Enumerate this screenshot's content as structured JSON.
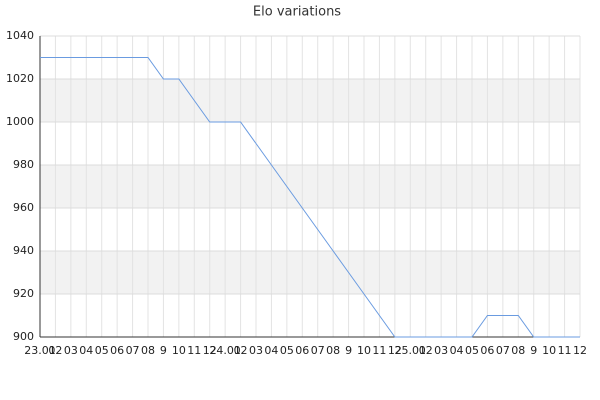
{
  "chart_data": {
    "type": "line",
    "title": "Elo variations",
    "categories": [
      "23.01",
      "02",
      "03",
      "04",
      "05",
      "06",
      "07",
      "08",
      "9",
      "10",
      "11",
      "12",
      "24.01",
      "02",
      "03",
      "04",
      "05",
      "06",
      "07",
      "08",
      "9",
      "10",
      "11",
      "12",
      "25.01",
      "02",
      "03",
      "04",
      "05",
      "06",
      "07",
      "08",
      "9",
      "10",
      "11",
      "12"
    ],
    "series": [
      {
        "name": "Elo",
        "color": "#6a9be0",
        "values": [
          1030,
          1030,
          1030,
          1030,
          1030,
          1030,
          1030,
          1030,
          1020,
          1020,
          1010,
          1000,
          1000,
          1000,
          990,
          980,
          970,
          960,
          950,
          940,
          930,
          920,
          910,
          900,
          900,
          900,
          900,
          900,
          900,
          910,
          910,
          910,
          900,
          900,
          900,
          900
        ]
      }
    ],
    "ylim": [
      900,
      1040
    ],
    "yticks": [
      900,
      920,
      940,
      960,
      980,
      1000,
      1020,
      1040
    ],
    "grid": true
  }
}
